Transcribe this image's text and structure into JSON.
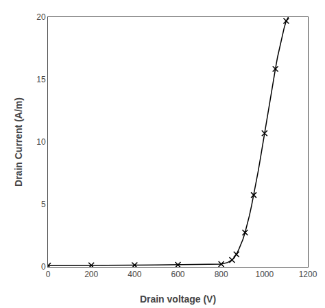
{
  "chart_data": {
    "type": "line",
    "xlabel": "Drain voltage (V)",
    "ylabel": "Drain Current (A/m)",
    "xlim": [
      0,
      1200
    ],
    "ylim": [
      0,
      20
    ],
    "xticks": [
      0,
      200,
      400,
      600,
      800,
      1000,
      1200
    ],
    "yticks": [
      0,
      5,
      10,
      15,
      20
    ],
    "grid": false,
    "series": [
      {
        "type": "line",
        "color": "#000000",
        "x": [
          0,
          100,
          200,
          300,
          400,
          500,
          600,
          700,
          800,
          830,
          850,
          860,
          870,
          880,
          890,
          900,
          910,
          920,
          930,
          940,
          950,
          960,
          970,
          980,
          990,
          1000,
          1010,
          1020,
          1030,
          1040,
          1050,
          1060,
          1070,
          1080,
          1090,
          1100,
          1110
        ],
        "values": [
          0.1,
          0.1,
          0.12,
          0.13,
          0.14,
          0.15,
          0.16,
          0.18,
          0.22,
          0.35,
          0.55,
          0.75,
          1.0,
          1.35,
          1.75,
          2.2,
          2.75,
          3.4,
          4.1,
          4.9,
          5.75,
          6.65,
          7.6,
          8.6,
          9.65,
          10.7,
          11.8,
          12.9,
          13.9,
          14.9,
          15.85,
          16.8,
          17.6,
          18.4,
          19.1,
          19.7,
          20.0
        ]
      },
      {
        "type": "scatter",
        "color": "#000000",
        "marker": "x",
        "x": [
          0,
          200,
          400,
          600,
          800,
          850,
          870,
          910,
          950,
          1000,
          1050,
          1100
        ],
        "values": [
          0.1,
          0.12,
          0.14,
          0.16,
          0.22,
          0.55,
          1.0,
          2.75,
          5.75,
          10.7,
          15.85,
          19.7
        ]
      }
    ]
  }
}
